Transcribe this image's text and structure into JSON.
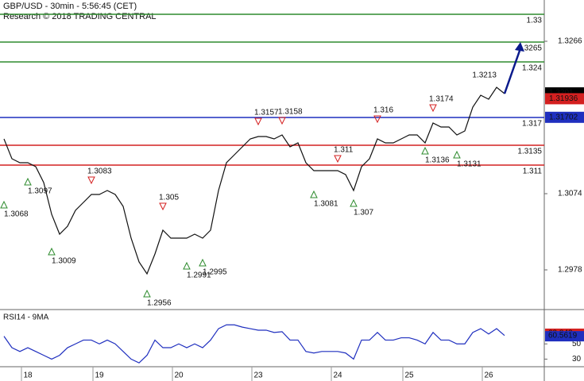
{
  "chart_data": {
    "type": "line",
    "title": "GBP/USD - 30min - 5:56:45 (CET)",
    "subtitle": "Research © 2018 TRADING CENTRAL",
    "categories": [
      null,
      null,
      null,
      "18",
      null,
      null,
      null,
      null,
      null,
      null,
      null,
      null,
      "19",
      null,
      null,
      null,
      null,
      null,
      null,
      null,
      null,
      null,
      "20",
      null,
      null,
      null,
      null,
      null,
      null,
      null,
      null,
      null,
      "23",
      null,
      null,
      null,
      null,
      null,
      null,
      null,
      null,
      null,
      "24",
      null,
      null,
      null,
      null,
      null,
      null,
      null,
      null,
      "25",
      null,
      null,
      null,
      null,
      null,
      null,
      null,
      null,
      null,
      "26",
      null,
      null
    ],
    "series": [
      {
        "name": "GBP/USD",
        "color": "#111111",
        "values": [
          1.3143,
          1.3118,
          1.3113,
          1.3113,
          1.3108,
          1.3088,
          1.3048,
          1.3023,
          1.3033,
          1.3053,
          1.3063,
          1.3073,
          1.3073,
          1.3078,
          1.3073,
          1.3058,
          1.3018,
          1.2988,
          1.2973,
          1.2998,
          1.3028,
          1.3018,
          1.3018,
          1.3018,
          1.3023,
          1.3018,
          1.3028,
          1.3078,
          1.3113,
          1.3123,
          1.3133,
          1.3143,
          1.3146,
          1.3146,
          1.3143,
          1.3148,
          1.3133,
          1.3138,
          1.3113,
          1.3103,
          1.3103,
          1.3103,
          1.3103,
          1.3098,
          1.3078,
          1.3108,
          1.3118,
          1.3143,
          1.3138,
          1.3138,
          1.3143,
          1.3148,
          1.3148,
          1.3138,
          1.3163,
          1.3158,
          1.3158,
          1.3148,
          1.3153,
          1.3183,
          1.3198,
          1.3193,
          1.3208,
          1.32
        ]
      }
    ],
    "ylim": [
      1.2928,
      1.3318
    ],
    "yticks": [
      1.3266,
      1.3074,
      1.2978
    ],
    "levels": [
      {
        "value": 1.33,
        "color": "#2e8b2e"
      },
      {
        "value": 1.3265,
        "color": "#2e8b2e"
      },
      {
        "value": 1.324,
        "color": "#2e8b2e"
      },
      {
        "value": 1.317,
        "color": "#1f2fbf"
      },
      {
        "value": 1.3135,
        "color": "#d42020"
      },
      {
        "value": 1.311,
        "color": "#d42020"
      }
    ],
    "pivots": [
      {
        "value": 1.3068,
        "index": 0,
        "kind": "support"
      },
      {
        "value": 1.3097,
        "index": 3,
        "kind": "support"
      },
      {
        "value": 1.3009,
        "index": 6,
        "kind": "support"
      },
      {
        "value": 1.3083,
        "index": 11,
        "kind": "resistance"
      },
      {
        "value": 1.2956,
        "index": 18,
        "kind": "support"
      },
      {
        "value": 1.305,
        "index": 20,
        "kind": "resistance"
      },
      {
        "value": 1.2991,
        "index": 23,
        "kind": "support"
      },
      {
        "value": 1.2995,
        "index": 25,
        "kind": "support"
      },
      {
        "value": 1.3157,
        "index": 32,
        "kind": "resistance"
      },
      {
        "value": 1.3158,
        "index": 35,
        "kind": "resistance"
      },
      {
        "value": 1.3081,
        "index": 39,
        "kind": "support"
      },
      {
        "value": 1.311,
        "index": 42,
        "kind": "resistance"
      },
      {
        "value": 1.307,
        "index": 44,
        "kind": "support"
      },
      {
        "value": 1.316,
        "index": 47,
        "kind": "resistance"
      },
      {
        "value": 1.3136,
        "index": 53,
        "kind": "support"
      },
      {
        "value": 1.3174,
        "index": 54,
        "kind": "resistance"
      },
      {
        "value": 1.3131,
        "index": 57,
        "kind": "support"
      },
      {
        "value": 1.3213,
        "index": 62,
        "kind": "high"
      }
    ],
    "price_boxes": [
      {
        "value": 1.3201,
        "color": "#000000"
      },
      {
        "value": 1.31936,
        "color": "#d42020"
      },
      {
        "value": 1.31702,
        "color": "#1f2fbf"
      }
    ],
    "rsi": {
      "title": "RSI14 - 9MA",
      "color": "#1f2fbf",
      "values": [
        60,
        45,
        40,
        45,
        40,
        35,
        30,
        35,
        45,
        50,
        55,
        55,
        50,
        55,
        50,
        40,
        30,
        25,
        35,
        55,
        45,
        45,
        50,
        45,
        50,
        45,
        55,
        70,
        75,
        75,
        72,
        70,
        68,
        68,
        65,
        66,
        55,
        55,
        40,
        38,
        40,
        40,
        40,
        38,
        30,
        55,
        55,
        65,
        55,
        55,
        58,
        58,
        55,
        50,
        65,
        55,
        55,
        50,
        50,
        65,
        70,
        63,
        70,
        61
      ],
      "ylim": [
        20,
        93
      ],
      "yticks": [
        50,
        30
      ],
      "boxes": [
        {
          "value": 63.843,
          "color": "#d42020"
        },
        {
          "value": 60.5619,
          "color": "#1f2fbf"
        }
      ]
    }
  }
}
